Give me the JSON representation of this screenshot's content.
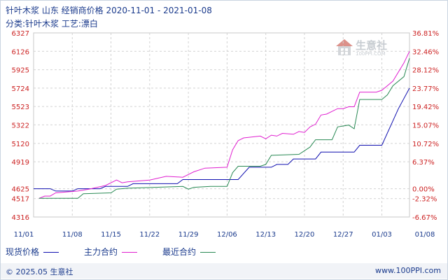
{
  "header": {
    "title": "针叶木浆 山东 经销商价格 2020-11-01 - 2021-01-08",
    "subtitle": "分类:针叶木浆 工艺:漂白"
  },
  "watermark": {
    "name": "生意社",
    "url": "100PPI.COM"
  },
  "footer": {
    "copyright": "© 2025.05 生意社",
    "site": "www.100PPI.com"
  },
  "colors": {
    "spot": "#1010b0",
    "main": "#e020d0",
    "near": "#2a8a55"
  },
  "chart_data": {
    "type": "line",
    "title": "针叶木浆 山东 经销商价格",
    "y_left_ticks": [
      "6327",
      "6126",
      "5925",
      "5724",
      "5523",
      "5322",
      "5120",
      "4919",
      "4625",
      "4517",
      "4316"
    ],
    "y_left_values": [
      6327,
      6126,
      5925,
      5724,
      5523,
      5322,
      5120,
      4919,
      4625,
      4517,
      4316
    ],
    "y_right_ticks": [
      "36.81%",
      "32.46%",
      "28.12%",
      "23.77%",
      "19.42%",
      "15.07%",
      "10.72%",
      "6.37%",
      "0.00%",
      "-2.32%",
      "-6.67%"
    ],
    "ylim": [
      4316,
      6327
    ],
    "x_ticks": [
      "11/01",
      "11/08",
      "11/15",
      "11/22",
      "11/29",
      "12/06",
      "12/13",
      "12/20",
      "12/27",
      "01/03",
      "01/08"
    ],
    "series": [
      {
        "name": "现货价格",
        "color": "#1010b0",
        "points": [
          [
            "11/01",
            4625
          ],
          [
            "11/04",
            4625
          ],
          [
            "11/05",
            4600
          ],
          [
            "11/08",
            4600
          ],
          [
            "11/09",
            4625
          ],
          [
            "11/13",
            4625
          ],
          [
            "11/14",
            4650
          ],
          [
            "11/18",
            4650
          ],
          [
            "11/19",
            4680
          ],
          [
            "11/27",
            4680
          ],
          [
            "11/28",
            4725
          ],
          [
            "12/08",
            4725
          ],
          [
            "12/10",
            4860
          ],
          [
            "12/14",
            4860
          ],
          [
            "12/15",
            4890
          ],
          [
            "12/17",
            4890
          ],
          [
            "12/18",
            4950
          ],
          [
            "12/22",
            4950
          ],
          [
            "12/23",
            5025
          ],
          [
            "12/29",
            5025
          ],
          [
            "12/30",
            5100
          ],
          [
            "01/03",
            5100
          ],
          [
            "01/06",
            5500
          ],
          [
            "01/08",
            5724
          ]
        ]
      },
      {
        "name": "主力合约",
        "color": "#e020d0",
        "points": [
          [
            "11/02",
            4520
          ],
          [
            "11/03",
            4545
          ],
          [
            "11/04",
            4545
          ],
          [
            "11/05",
            4580
          ],
          [
            "11/09",
            4600
          ],
          [
            "11/11",
            4620
          ],
          [
            "11/14",
            4660
          ],
          [
            "11/16",
            4720
          ],
          [
            "11/17",
            4690
          ],
          [
            "11/18",
            4700
          ],
          [
            "11/22",
            4720
          ],
          [
            "11/25",
            4760
          ],
          [
            "11/28",
            4750
          ],
          [
            "11/29",
            4780
          ],
          [
            "11/30",
            4810
          ],
          [
            "12/02",
            4850
          ],
          [
            "12/06",
            4860
          ],
          [
            "12/07",
            5050
          ],
          [
            "12/08",
            5150
          ],
          [
            "12/09",
            5180
          ],
          [
            "12/12",
            5200
          ],
          [
            "12/13",
            5170
          ],
          [
            "12/14",
            5210
          ],
          [
            "12/15",
            5200
          ],
          [
            "12/16",
            5230
          ],
          [
            "12/18",
            5220
          ],
          [
            "12/19",
            5250
          ],
          [
            "12/20",
            5240
          ],
          [
            "12/21",
            5300
          ],
          [
            "12/22",
            5330
          ],
          [
            "12/23",
            5430
          ],
          [
            "12/24",
            5440
          ],
          [
            "12/26",
            5500
          ],
          [
            "12/27",
            5500
          ],
          [
            "12/28",
            5520
          ],
          [
            "12/29",
            5520
          ],
          [
            "12/30",
            5680
          ],
          [
            "01/02",
            5680
          ],
          [
            "01/03",
            5700
          ],
          [
            "01/05",
            5800
          ],
          [
            "01/07",
            6000
          ],
          [
            "01/08",
            6126
          ]
        ]
      },
      {
        "name": "最近合约",
        "color": "#2a8a55",
        "points": [
          [
            "11/02",
            4520
          ],
          [
            "11/09",
            4520
          ],
          [
            "11/10",
            4570
          ],
          [
            "11/15",
            4580
          ],
          [
            "11/16",
            4620
          ],
          [
            "11/18",
            4630
          ],
          [
            "11/23",
            4640
          ],
          [
            "11/28",
            4650
          ],
          [
            "11/29",
            4620
          ],
          [
            "11/30",
            4640
          ],
          [
            "12/03",
            4650
          ],
          [
            "12/06",
            4650
          ],
          [
            "12/07",
            4800
          ],
          [
            "12/08",
            4870
          ],
          [
            "12/12",
            4870
          ],
          [
            "12/13",
            4890
          ],
          [
            "12/14",
            4990
          ],
          [
            "12/19",
            5000
          ],
          [
            "12/21",
            5080
          ],
          [
            "12/22",
            5160
          ],
          [
            "12/25",
            5160
          ],
          [
            "12/26",
            5300
          ],
          [
            "12/28",
            5320
          ],
          [
            "12/29",
            5280
          ],
          [
            "12/30",
            5600
          ],
          [
            "01/03",
            5600
          ],
          [
            "01/04",
            5650
          ],
          [
            "01/05",
            5750
          ],
          [
            "01/07",
            5850
          ],
          [
            "01/08",
            6050
          ]
        ]
      }
    ]
  }
}
